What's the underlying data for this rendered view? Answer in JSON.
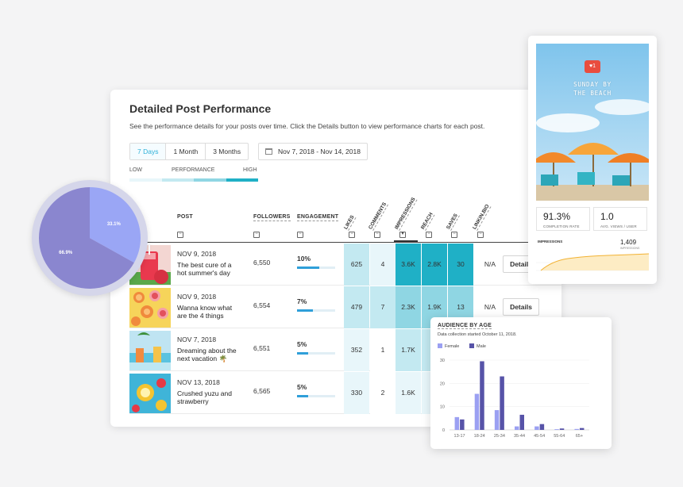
{
  "main": {
    "title": "Detailed Post Performance",
    "subtitle": "See the performance details for your posts over time. Click the Details button to view performance charts for each post.",
    "ranges": [
      "7 Days",
      "1 Month",
      "3 Months"
    ],
    "active_range": "7 Days",
    "date_range": "Nov 7, 2018 - Nov 14, 2018",
    "legend": {
      "low": "LOW",
      "mid": "PERFORMANCE",
      "high": "HIGH"
    },
    "columns": {
      "post": "POST",
      "followers": "FOLLOWERS",
      "engagement": "ENGAGEMENT",
      "likes": "LIKES",
      "comments": "COMMENTS",
      "impressions": "IMPRESSIONS",
      "reach": "REACH",
      "saves": "SAVES",
      "linkinbio": "LINKIN.BIO"
    },
    "details_label": "Details",
    "colors": {
      "low": "#e8f6fa",
      "l2": "#c3e9f1",
      "l3": "#8fd6e3",
      "high": "#1fb0c6"
    },
    "rows": [
      {
        "date": "NOV 9, 2018",
        "text": "The best cure of a hot summer's day",
        "followers": "6,550",
        "engagement": "10%",
        "eng_value": 0.58,
        "likes": "625",
        "comments": "4",
        "impressions": "3.6K",
        "reach": "2.8K",
        "saves": "30",
        "linkinbio": "N/A",
        "thumb": "watermelon-drink-photo"
      },
      {
        "date": "NOV 9, 2018",
        "text": "Wanna know what are the 4 things",
        "followers": "6,554",
        "engagement": "7%",
        "eng_value": 0.42,
        "likes": "479",
        "comments": "7",
        "impressions": "2.3K",
        "reach": "1.9K",
        "saves": "13",
        "linkinbio": "N/A",
        "thumb": "citrus-slices-photo"
      },
      {
        "date": "NOV 7, 2018",
        "text": "Dreaming about the next vacation 🌴",
        "followers": "6,551",
        "engagement": "5%",
        "eng_value": 0.3,
        "likes": "352",
        "comments": "1",
        "impressions": "1.7K",
        "reach": "",
        "saves": "",
        "linkinbio": "",
        "thumb": "poolside-drinks-photo"
      },
      {
        "date": "NOV 13, 2018",
        "text": "Crushed yuzu and strawberry",
        "followers": "6,565",
        "engagement": "5%",
        "eng_value": 0.3,
        "likes": "330",
        "comments": "2",
        "impressions": "1.6K",
        "reach": "",
        "saves": "",
        "linkinbio": "",
        "thumb": "yuzu-drink-photo"
      }
    ]
  },
  "pie": {
    "chart_data": {
      "type": "pie",
      "labels": [
        "66.9%",
        "33.1%"
      ],
      "values": [
        66.9,
        33.1
      ],
      "colors": [
        "#8a86cf",
        "#9aa6f5"
      ]
    }
  },
  "story": {
    "title_line1": "SUNDAY BY",
    "title_line2": "THE BEACH",
    "badge": "♥1",
    "completion_value": "91.3%",
    "completion_label": "COMPLETION RATE",
    "views_value": "1.0",
    "views_label": "AVG. VIEWS / USER",
    "impressions_label": "IMPRESSIONS",
    "impressions_value": "1,409",
    "impressions_sub": "IMPRESSIONS"
  },
  "audience": {
    "title": "AUDIENCE BY AGE",
    "subtitle": "Data collection started October 11, 2018.",
    "legend_female": "Female",
    "legend_male": "Male",
    "colors": {
      "female": "#9ba0f2",
      "male": "#5753a8"
    },
    "chart_data": {
      "type": "bar",
      "categories": [
        "13-17",
        "18-24",
        "25-34",
        "35-44",
        "45-54",
        "55-64",
        "65+"
      ],
      "y_ticks": [
        "0",
        "10",
        "20",
        "30"
      ],
      "ylim": [
        0,
        30
      ],
      "series": [
        {
          "name": "Female",
          "values": [
            5.5,
            15.5,
            8.5,
            1.5,
            1.5,
            0.3,
            0.4
          ]
        },
        {
          "name": "Male",
          "values": [
            4.5,
            29.5,
            23,
            6.5,
            2.5,
            0.6,
            0.8
          ]
        }
      ]
    }
  }
}
